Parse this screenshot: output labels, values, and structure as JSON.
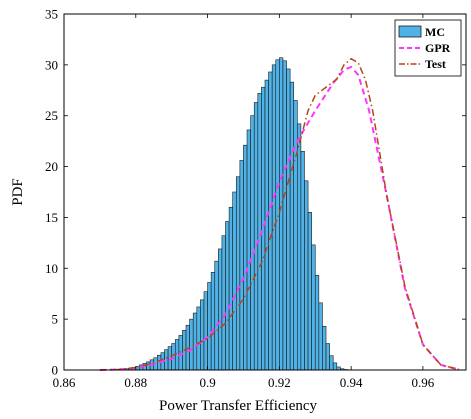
{
  "chart_data": {
    "type": "bar",
    "xlabel": "Power Transfer Efficiency",
    "ylabel": "PDF",
    "xlim": [
      0.86,
      0.972
    ],
    "ylim": [
      0,
      35
    ],
    "xticks": [
      0.86,
      0.88,
      0.9,
      0.92,
      0.94,
      0.96
    ],
    "xtick_labels": [
      "0.86",
      "0.88",
      "0.9",
      "0.92",
      "0.94",
      "0.96"
    ],
    "yticks": [
      0,
      5,
      10,
      15,
      20,
      25,
      30,
      35
    ],
    "ytick_labels": [
      "0",
      "5",
      "10",
      "15",
      "20",
      "25",
      "30",
      "35"
    ],
    "legend_position": "top-right",
    "legend": [
      {
        "label": "MC",
        "style": "bar",
        "color": "#4FB3E8"
      },
      {
        "label": "GPR",
        "style": "dashed",
        "color": "#FF33FF"
      },
      {
        "label": "Test",
        "style": "dash-dot",
        "color": "#B5461C"
      }
    ],
    "histogram": {
      "series_name": "MC",
      "color": "#4FB3E8",
      "edge_color": "#1a1a1a",
      "bin_width": 0.001,
      "bin_start": 0.875,
      "values": [
        0.05,
        0.08,
        0.12,
        0.18,
        0.25,
        0.35,
        0.5,
        0.65,
        0.8,
        1.0,
        1.2,
        1.45,
        1.7,
        2.0,
        2.3,
        2.6,
        3.0,
        3.4,
        3.9,
        4.4,
        5.0,
        5.6,
        6.2,
        6.9,
        7.7,
        8.6,
        9.6,
        10.7,
        11.9,
        13.2,
        14.6,
        16.0,
        17.5,
        19.0,
        20.6,
        22.1,
        23.6,
        25.0,
        26.3,
        27.2,
        27.8,
        28.5,
        29.3,
        30.0,
        30.5,
        30.7,
        30.4,
        29.6,
        28.3,
        26.5,
        24.2,
        21.5,
        18.6,
        15.5,
        12.3,
        9.3,
        6.6,
        4.3,
        2.6,
        1.4,
        0.7,
        0.3,
        0.12,
        0.05
      ]
    },
    "series": [
      {
        "name": "GPR",
        "style": "dashed",
        "color": "#FF33FF",
        "x": [
          0.87,
          0.875,
          0.88,
          0.885,
          0.89,
          0.895,
          0.9,
          0.905,
          0.91,
          0.915,
          0.92,
          0.925,
          0.93,
          0.935,
          0.938,
          0.94,
          0.942,
          0.945,
          0.95,
          0.955,
          0.96,
          0.965,
          0.97
        ],
        "y": [
          0.0,
          0.05,
          0.2,
          0.6,
          1.1,
          1.9,
          3.2,
          5.5,
          9.0,
          13.5,
          18.5,
          22.5,
          25.5,
          28.2,
          29.5,
          29.8,
          29.0,
          25.5,
          17.0,
          8.0,
          2.5,
          0.5,
          0.05
        ]
      },
      {
        "name": "Test",
        "style": "dash-dot",
        "color": "#B5461C",
        "x": [
          0.87,
          0.875,
          0.88,
          0.885,
          0.89,
          0.895,
          0.9,
          0.905,
          0.91,
          0.915,
          0.92,
          0.925,
          0.928,
          0.93,
          0.933,
          0.936,
          0.938,
          0.94,
          0.942,
          0.944,
          0.946,
          0.95,
          0.955,
          0.96,
          0.965,
          0.97
        ],
        "y": [
          0.0,
          0.05,
          0.25,
          0.7,
          1.4,
          2.2,
          3.1,
          4.6,
          7.0,
          10.5,
          15.5,
          21.5,
          25.5,
          27.0,
          27.8,
          28.6,
          30.0,
          30.6,
          30.2,
          28.5,
          25.5,
          17.0,
          8.2,
          2.5,
          0.5,
          0.05
        ]
      }
    ]
  }
}
